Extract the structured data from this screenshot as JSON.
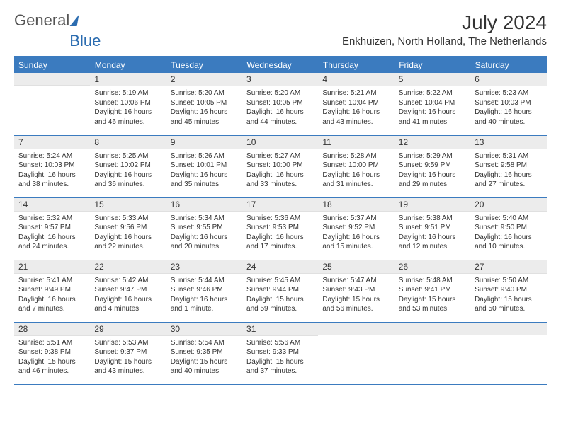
{
  "brand": {
    "part1": "General",
    "part2": "Blue"
  },
  "title": "July 2024",
  "location": "Enkhuizen, North Holland, The Netherlands",
  "colors": {
    "header_bg": "#3b7bbf",
    "header_text": "#ffffff",
    "daynum_bg": "#ececec",
    "border": "#3b7bbf",
    "text": "#333333"
  },
  "typography": {
    "body_pt": 10,
    "title_pt": 28,
    "location_pt": 15,
    "header_pt": 12
  },
  "calendar": {
    "type": "table",
    "columns": [
      "Sunday",
      "Monday",
      "Tuesday",
      "Wednesday",
      "Thursday",
      "Friday",
      "Saturday"
    ],
    "start_offset": 1,
    "days": [
      {
        "n": "1",
        "sunrise": "Sunrise: 5:19 AM",
        "sunset": "Sunset: 10:06 PM",
        "daylight": "Daylight: 16 hours and 46 minutes."
      },
      {
        "n": "2",
        "sunrise": "Sunrise: 5:20 AM",
        "sunset": "Sunset: 10:05 PM",
        "daylight": "Daylight: 16 hours and 45 minutes."
      },
      {
        "n": "3",
        "sunrise": "Sunrise: 5:20 AM",
        "sunset": "Sunset: 10:05 PM",
        "daylight": "Daylight: 16 hours and 44 minutes."
      },
      {
        "n": "4",
        "sunrise": "Sunrise: 5:21 AM",
        "sunset": "Sunset: 10:04 PM",
        "daylight": "Daylight: 16 hours and 43 minutes."
      },
      {
        "n": "5",
        "sunrise": "Sunrise: 5:22 AM",
        "sunset": "Sunset: 10:04 PM",
        "daylight": "Daylight: 16 hours and 41 minutes."
      },
      {
        "n": "6",
        "sunrise": "Sunrise: 5:23 AM",
        "sunset": "Sunset: 10:03 PM",
        "daylight": "Daylight: 16 hours and 40 minutes."
      },
      {
        "n": "7",
        "sunrise": "Sunrise: 5:24 AM",
        "sunset": "Sunset: 10:03 PM",
        "daylight": "Daylight: 16 hours and 38 minutes."
      },
      {
        "n": "8",
        "sunrise": "Sunrise: 5:25 AM",
        "sunset": "Sunset: 10:02 PM",
        "daylight": "Daylight: 16 hours and 36 minutes."
      },
      {
        "n": "9",
        "sunrise": "Sunrise: 5:26 AM",
        "sunset": "Sunset: 10:01 PM",
        "daylight": "Daylight: 16 hours and 35 minutes."
      },
      {
        "n": "10",
        "sunrise": "Sunrise: 5:27 AM",
        "sunset": "Sunset: 10:00 PM",
        "daylight": "Daylight: 16 hours and 33 minutes."
      },
      {
        "n": "11",
        "sunrise": "Sunrise: 5:28 AM",
        "sunset": "Sunset: 10:00 PM",
        "daylight": "Daylight: 16 hours and 31 minutes."
      },
      {
        "n": "12",
        "sunrise": "Sunrise: 5:29 AM",
        "sunset": "Sunset: 9:59 PM",
        "daylight": "Daylight: 16 hours and 29 minutes."
      },
      {
        "n": "13",
        "sunrise": "Sunrise: 5:31 AM",
        "sunset": "Sunset: 9:58 PM",
        "daylight": "Daylight: 16 hours and 27 minutes."
      },
      {
        "n": "14",
        "sunrise": "Sunrise: 5:32 AM",
        "sunset": "Sunset: 9:57 PM",
        "daylight": "Daylight: 16 hours and 24 minutes."
      },
      {
        "n": "15",
        "sunrise": "Sunrise: 5:33 AM",
        "sunset": "Sunset: 9:56 PM",
        "daylight": "Daylight: 16 hours and 22 minutes."
      },
      {
        "n": "16",
        "sunrise": "Sunrise: 5:34 AM",
        "sunset": "Sunset: 9:55 PM",
        "daylight": "Daylight: 16 hours and 20 minutes."
      },
      {
        "n": "17",
        "sunrise": "Sunrise: 5:36 AM",
        "sunset": "Sunset: 9:53 PM",
        "daylight": "Daylight: 16 hours and 17 minutes."
      },
      {
        "n": "18",
        "sunrise": "Sunrise: 5:37 AM",
        "sunset": "Sunset: 9:52 PM",
        "daylight": "Daylight: 16 hours and 15 minutes."
      },
      {
        "n": "19",
        "sunrise": "Sunrise: 5:38 AM",
        "sunset": "Sunset: 9:51 PM",
        "daylight": "Daylight: 16 hours and 12 minutes."
      },
      {
        "n": "20",
        "sunrise": "Sunrise: 5:40 AM",
        "sunset": "Sunset: 9:50 PM",
        "daylight": "Daylight: 16 hours and 10 minutes."
      },
      {
        "n": "21",
        "sunrise": "Sunrise: 5:41 AM",
        "sunset": "Sunset: 9:49 PM",
        "daylight": "Daylight: 16 hours and 7 minutes."
      },
      {
        "n": "22",
        "sunrise": "Sunrise: 5:42 AM",
        "sunset": "Sunset: 9:47 PM",
        "daylight": "Daylight: 16 hours and 4 minutes."
      },
      {
        "n": "23",
        "sunrise": "Sunrise: 5:44 AM",
        "sunset": "Sunset: 9:46 PM",
        "daylight": "Daylight: 16 hours and 1 minute."
      },
      {
        "n": "24",
        "sunrise": "Sunrise: 5:45 AM",
        "sunset": "Sunset: 9:44 PM",
        "daylight": "Daylight: 15 hours and 59 minutes."
      },
      {
        "n": "25",
        "sunrise": "Sunrise: 5:47 AM",
        "sunset": "Sunset: 9:43 PM",
        "daylight": "Daylight: 15 hours and 56 minutes."
      },
      {
        "n": "26",
        "sunrise": "Sunrise: 5:48 AM",
        "sunset": "Sunset: 9:41 PM",
        "daylight": "Daylight: 15 hours and 53 minutes."
      },
      {
        "n": "27",
        "sunrise": "Sunrise: 5:50 AM",
        "sunset": "Sunset: 9:40 PM",
        "daylight": "Daylight: 15 hours and 50 minutes."
      },
      {
        "n": "28",
        "sunrise": "Sunrise: 5:51 AM",
        "sunset": "Sunset: 9:38 PM",
        "daylight": "Daylight: 15 hours and 46 minutes."
      },
      {
        "n": "29",
        "sunrise": "Sunrise: 5:53 AM",
        "sunset": "Sunset: 9:37 PM",
        "daylight": "Daylight: 15 hours and 43 minutes."
      },
      {
        "n": "30",
        "sunrise": "Sunrise: 5:54 AM",
        "sunset": "Sunset: 9:35 PM",
        "daylight": "Daylight: 15 hours and 40 minutes."
      },
      {
        "n": "31",
        "sunrise": "Sunrise: 5:56 AM",
        "sunset": "Sunset: 9:33 PM",
        "daylight": "Daylight: 15 hours and 37 minutes."
      }
    ]
  }
}
